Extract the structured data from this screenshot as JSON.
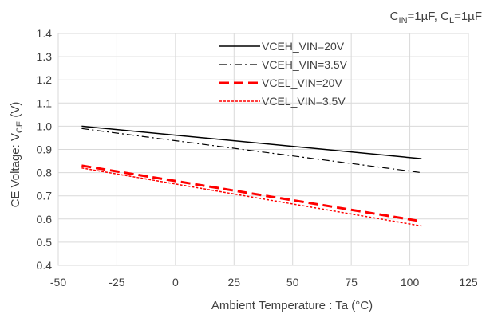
{
  "chart_data": {
    "type": "line",
    "title": "",
    "conditions": {
      "parts": [
        {
          "text": "C",
          "sub": "IN",
          "tail": "=1µF, "
        },
        {
          "text": "C",
          "sub": "L",
          "tail": "=1µF"
        }
      ]
    },
    "xlabel": "Ambient Temperature : Ta (°C)",
    "ylabel": {
      "main": "CE Voltage: V",
      "sub": "CE",
      "tail": " (V)"
    },
    "xlim": [
      -50,
      125
    ],
    "ylim": [
      0.4,
      1.4
    ],
    "xticks": [
      -50,
      -25,
      0,
      25,
      50,
      75,
      100,
      125
    ],
    "yticks": [
      0.4,
      0.5,
      0.6,
      0.7,
      0.8,
      0.9,
      1.0,
      1.1,
      1.2,
      1.3,
      1.4
    ],
    "grid": true,
    "legend_position": "top-center",
    "series": [
      {
        "name": "VCEH_VIN=20V",
        "color": "#000000",
        "dash": "solid",
        "width": 1.5,
        "x": [
          -40,
          105
        ],
        "y": [
          1.0,
          0.86
        ]
      },
      {
        "name": "VCEH_VIN=3.5V",
        "color": "#000000",
        "dash": "dashdot",
        "width": 1.2,
        "x": [
          -40,
          105
        ],
        "y": [
          0.99,
          0.8
        ]
      },
      {
        "name": "VCEL_VIN=20V",
        "color": "#ff0000",
        "dash": "dash",
        "width": 3,
        "x": [
          -40,
          105
        ],
        "y": [
          0.83,
          0.59
        ]
      },
      {
        "name": "VCEL_VIN=3.5V",
        "color": "#ff0000",
        "dash": "dot",
        "width": 1.5,
        "x": [
          -40,
          105
        ],
        "y": [
          0.82,
          0.57
        ]
      }
    ]
  }
}
